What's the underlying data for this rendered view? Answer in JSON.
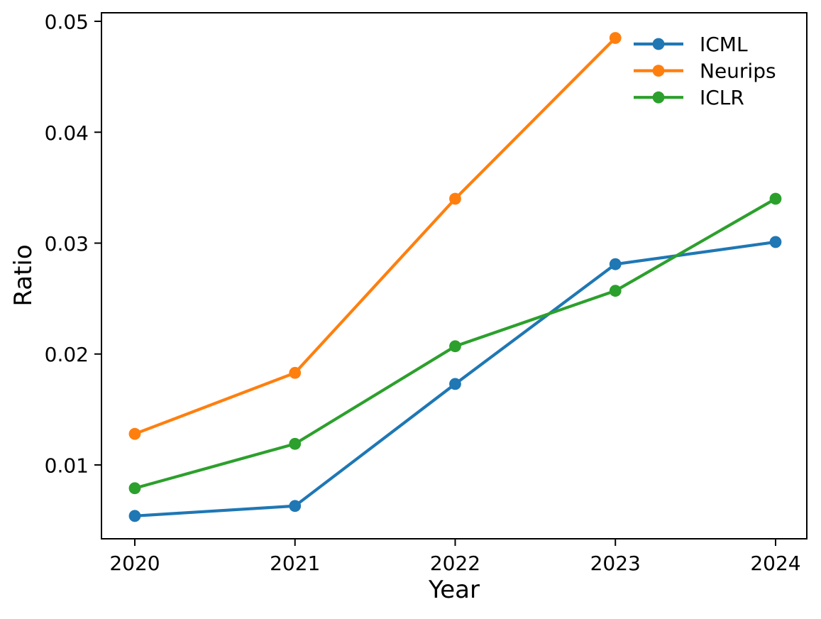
{
  "figure": {
    "background": "#ffffff"
  },
  "chart_data": {
    "type": "line",
    "title": "",
    "xlabel": "Year",
    "ylabel": "Ratio",
    "x_ticks": [
      "2020",
      "2021",
      "2022",
      "2023",
      "2024"
    ],
    "y_ticks": [
      "0.01",
      "0.02",
      "0.03",
      "0.04",
      "0.05"
    ],
    "xlim": [
      2019.792,
      2024.195
    ],
    "ylim": [
      0.00334,
      0.05077
    ],
    "grid": false,
    "axis_color": "#000000",
    "legend": {
      "position": "upper-right",
      "frame": false
    },
    "series": [
      {
        "name": "ICML",
        "color": "#1f77b4",
        "x": [
          2020,
          2021,
          2022,
          2023,
          2024
        ],
        "y": [
          0.0054,
          0.0063,
          0.0173,
          0.0281,
          0.0301
        ]
      },
      {
        "name": "Neurips",
        "color": "#ff7f0e",
        "x": [
          2020,
          2021,
          2022,
          2023
        ],
        "y": [
          0.0128,
          0.0183,
          0.034,
          0.0485
        ]
      },
      {
        "name": "ICLR",
        "color": "#2ca02c",
        "x": [
          2020,
          2021,
          2022,
          2023,
          2024
        ],
        "y": [
          0.0079,
          0.0119,
          0.0207,
          0.0257,
          0.034
        ]
      }
    ]
  }
}
